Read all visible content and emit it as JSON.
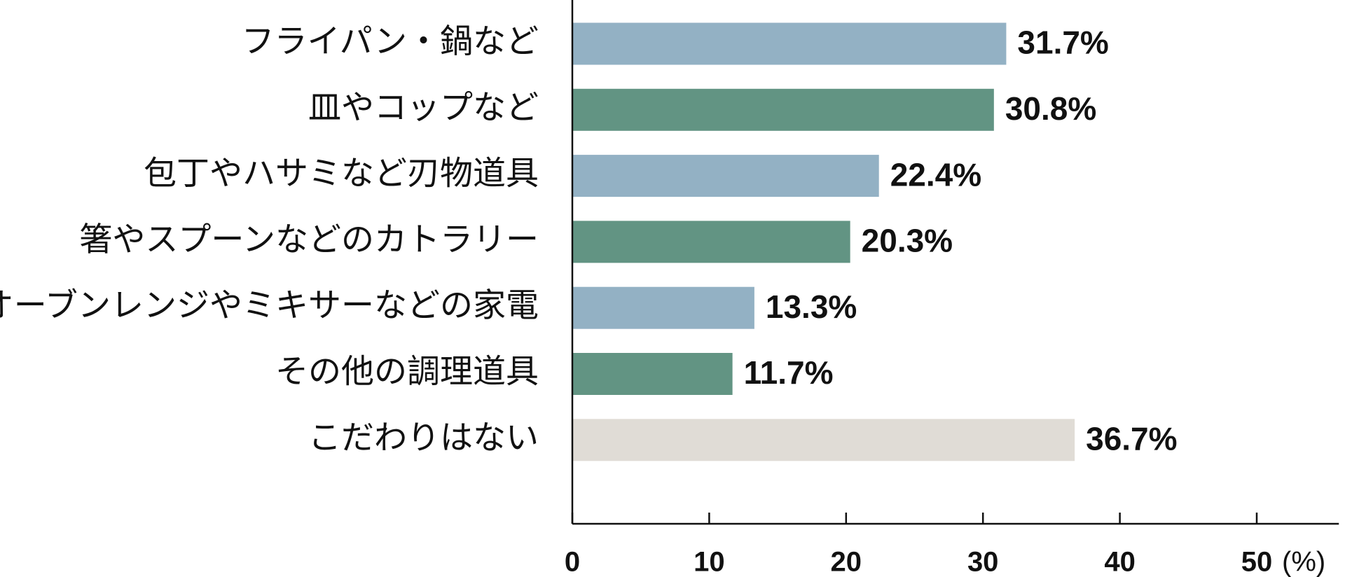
{
  "chart_data": {
    "type": "hbar",
    "categories": [
      "フライパン・鍋など",
      "皿やコップなど",
      "包丁やハサミなど刃物道具",
      "箸やスプーンなどのカトラリー",
      "オーブンレンジやミキサーなどの家電",
      "その他の調理道具",
      "こだわりはない"
    ],
    "values": [
      31.7,
      30.8,
      22.4,
      20.3,
      13.3,
      11.7,
      36.7
    ],
    "value_labels": [
      "31.7%",
      "30.8%",
      "22.4%",
      "20.3%",
      "13.3%",
      "11.7%",
      "36.7%"
    ],
    "colors": [
      "#93b1c4",
      "#629483",
      "#93b1c4",
      "#629483",
      "#93b1c4",
      "#629483",
      "#e0dcd6"
    ],
    "xlim": [
      0,
      56
    ],
    "xticks": [
      0,
      10,
      20,
      30,
      40,
      50
    ],
    "x_label": "(%)"
  }
}
